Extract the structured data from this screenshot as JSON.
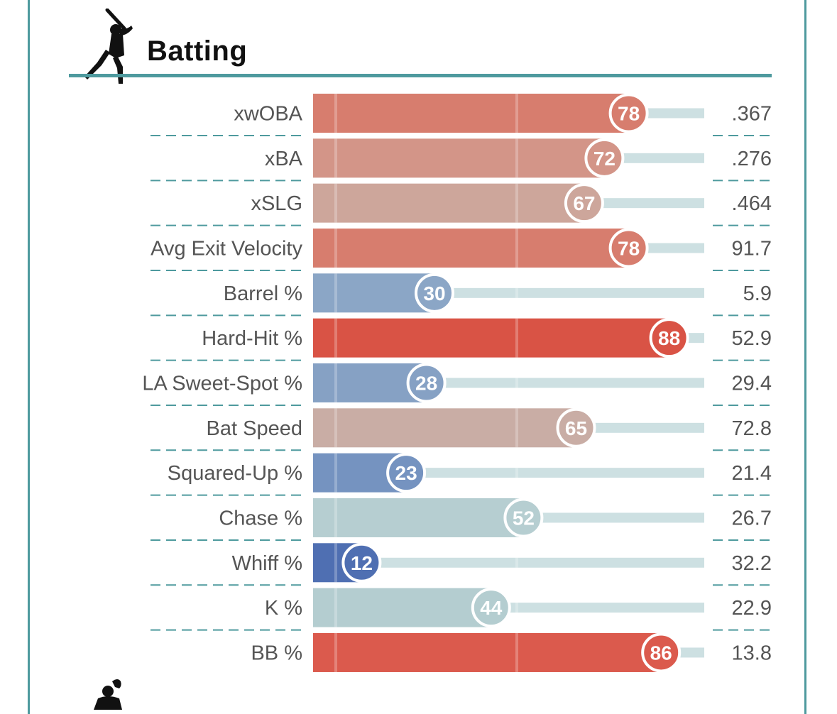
{
  "section": {
    "title": "Batting",
    "icon": "batter-silhouette-icon",
    "next_icon": "fielder-silhouette-icon"
  },
  "colors": {
    "frame": "#4e9a9e",
    "track": "#cde0e2",
    "divider": "#4e9a9e"
  },
  "chart_data": {
    "type": "bar",
    "orientation": "horizontal",
    "title": "Batting",
    "value_scale": "percentile",
    "xlim": [
      0,
      100
    ],
    "rows": [
      {
        "label": "xwOBA",
        "percentile": 78,
        "value": ".367",
        "color": "#d77d6e"
      },
      {
        "label": "xBA",
        "percentile": 72,
        "value": ".276",
        "color": "#d39588"
      },
      {
        "label": "xSLG",
        "percentile": 67,
        "value": ".464",
        "color": "#cda69b"
      },
      {
        "label": "Avg Exit Velocity",
        "percentile": 78,
        "value": "91.7",
        "color": "#d77d6e"
      },
      {
        "label": "Barrel %",
        "percentile": 30,
        "value": "5.9",
        "color": "#8ba6c6"
      },
      {
        "label": "Hard-Hit %",
        "percentile": 88,
        "value": "52.9",
        "color": "#d95345"
      },
      {
        "label": "LA Sweet-Spot %",
        "percentile": 28,
        "value": "29.4",
        "color": "#86a1c4"
      },
      {
        "label": "Bat Speed",
        "percentile": 65,
        "value": "72.8",
        "color": "#c9ada5"
      },
      {
        "label": "Squared-Up %",
        "percentile": 23,
        "value": "21.4",
        "color": "#7593c0"
      },
      {
        "label": "Chase %",
        "percentile": 52,
        "value": "26.7",
        "color": "#b6ced1"
      },
      {
        "label": "Whiff %",
        "percentile": 12,
        "value": "32.2",
        "color": "#4f6fb2"
      },
      {
        "label": "K %",
        "percentile": 44,
        "value": "22.9",
        "color": "#b4cdd0"
      },
      {
        "label": "BB %",
        "percentile": 86,
        "value": "13.8",
        "color": "#db5a4d"
      }
    ]
  }
}
